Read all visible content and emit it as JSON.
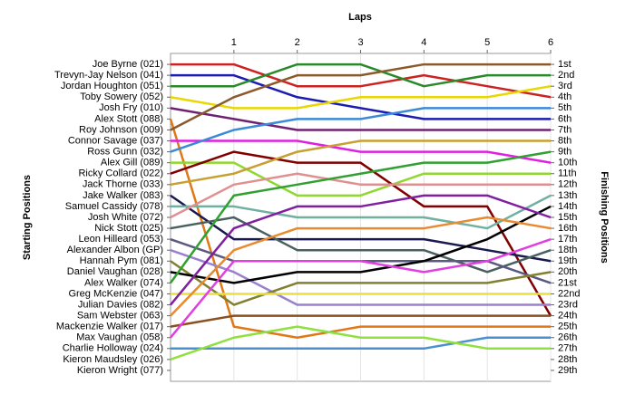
{
  "chart_data": {
    "type": "bump",
    "title": "Laps",
    "y_label": "Starting Positions",
    "y2_label": "Finishing Positions",
    "x": [
      0,
      1,
      2,
      3,
      4,
      5,
      6
    ],
    "xlim": [
      0,
      6
    ],
    "xticks": [
      1,
      2,
      3,
      4,
      5,
      6
    ],
    "ylim": [
      30,
      0
    ],
    "grid": true,
    "yticks": [
      {
        "value": 1,
        "label": "Joe Byrne (021)"
      },
      {
        "value": 2,
        "label": "Trevyn-Jay Nelson (041)"
      },
      {
        "value": 3,
        "label": "Jordan Houghton (051)"
      },
      {
        "value": 4,
        "label": "Toby Sowery (052)"
      },
      {
        "value": 5,
        "label": "Josh Fry (010)"
      },
      {
        "value": 6,
        "label": "Alex Stott (088)"
      },
      {
        "value": 7,
        "label": "Roy Johnson (009)"
      },
      {
        "value": 8,
        "label": "Connor Savage (037)"
      },
      {
        "value": 9,
        "label": "Ross Gunn (032)"
      },
      {
        "value": 10,
        "label": "Alex Gill (089)"
      },
      {
        "value": 11,
        "label": "Ricky Collard (022)"
      },
      {
        "value": 12,
        "label": "Jack Thorne (033)"
      },
      {
        "value": 13,
        "label": "Jake Walker (083)"
      },
      {
        "value": 14,
        "label": "Samuel Cassidy (078)"
      },
      {
        "value": 15,
        "label": "Josh White (072)"
      },
      {
        "value": 16,
        "label": "Nick Stott (025)"
      },
      {
        "value": 17,
        "label": "Leon Hilleard (053)"
      },
      {
        "value": 18,
        "label": "Alexander Albon (GP)"
      },
      {
        "value": 19,
        "label": "Hannah Pym (081)"
      },
      {
        "value": 20,
        "label": "Daniel Vaughan (028)"
      },
      {
        "value": 21,
        "label": "Alex Walker (074)"
      },
      {
        "value": 22,
        "label": "Greg McKenzie (047)"
      },
      {
        "value": 23,
        "label": "Julian Davies (082)"
      },
      {
        "value": 24,
        "label": "Sam Webster (063)"
      },
      {
        "value": 25,
        "label": "Mackenzie Walker (017)"
      },
      {
        "value": 26,
        "label": "Max Vaughan (058)"
      },
      {
        "value": 27,
        "label": "Charlie Holloway (024)"
      },
      {
        "value": 28,
        "label": "Kieron Maudsley (026)"
      },
      {
        "value": 29,
        "label": "Kieron Wright (077)"
      }
    ],
    "y2ticks": [
      {
        "value": 1,
        "label": "1st"
      },
      {
        "value": 2,
        "label": "2nd"
      },
      {
        "value": 3,
        "label": "3rd"
      },
      {
        "value": 4,
        "label": "4th"
      },
      {
        "value": 5,
        "label": "5th"
      },
      {
        "value": 6,
        "label": "6th"
      },
      {
        "value": 7,
        "label": "7th"
      },
      {
        "value": 8,
        "label": "8th"
      },
      {
        "value": 9,
        "label": "9th"
      },
      {
        "value": 10,
        "label": "10th"
      },
      {
        "value": 11,
        "label": "11th"
      },
      {
        "value": 12,
        "label": "12th"
      },
      {
        "value": 13,
        "label": "13th"
      },
      {
        "value": 14,
        "label": "14th"
      },
      {
        "value": 15,
        "label": "15th"
      },
      {
        "value": 16,
        "label": "16th"
      },
      {
        "value": 17,
        "label": "17th"
      },
      {
        "value": 18,
        "label": "18th"
      },
      {
        "value": 19,
        "label": "19th"
      },
      {
        "value": 20,
        "label": "20th"
      },
      {
        "value": 21,
        "label": "21st"
      },
      {
        "value": 22,
        "label": "22nd"
      },
      {
        "value": 23,
        "label": "23rd"
      },
      {
        "value": 24,
        "label": "24th"
      },
      {
        "value": 25,
        "label": "25th"
      },
      {
        "value": 26,
        "label": "26th"
      },
      {
        "value": 27,
        "label": "27th"
      },
      {
        "value": 28,
        "label": "28th"
      },
      {
        "value": 29,
        "label": "29th"
      }
    ],
    "series": [
      {
        "color": "#cc2222",
        "values": [
          1,
          1,
          3,
          3,
          2,
          3,
          4
        ]
      },
      {
        "color": "#1c1cb0",
        "values": [
          2,
          2,
          4,
          5,
          6,
          6,
          6
        ]
      },
      {
        "color": "#2a8a2a",
        "values": [
          3,
          3,
          1,
          1,
          3,
          2,
          2
        ]
      },
      {
        "color": "#e8d800",
        "values": [
          4,
          5,
          5,
          4,
          4,
          4,
          3
        ]
      },
      {
        "color": "#702070",
        "values": [
          5,
          6,
          7,
          7,
          7,
          7,
          7
        ]
      },
      {
        "color": "#e07818",
        "values": [
          6,
          25,
          26,
          25,
          25,
          25,
          25
        ]
      },
      {
        "color": "#8a5a2a",
        "values": [
          7,
          4,
          2,
          2,
          1,
          1,
          1
        ]
      },
      {
        "color": "#e020e0",
        "values": [
          8,
          8,
          8,
          9,
          9,
          9,
          10
        ]
      },
      {
        "color": "#3a8ad8",
        "values": [
          9,
          7,
          6,
          6,
          5,
          5,
          5
        ]
      },
      {
        "color": "#90d830",
        "values": [
          10,
          10,
          13,
          13,
          11,
          11,
          11
        ]
      },
      {
        "color": "#800000",
        "values": [
          11,
          9,
          10,
          10,
          14,
          14,
          24
        ]
      },
      {
        "color": "#c8a030",
        "values": [
          12,
          11,
          9,
          8,
          8,
          8,
          8
        ]
      },
      {
        "color": "#1a1a50",
        "values": [
          13,
          17,
          17,
          17,
          17,
          18,
          19
        ]
      },
      {
        "color": "#70b0a0",
        "values": [
          14,
          14,
          15,
          15,
          15,
          16,
          13
        ]
      },
      {
        "color": "#e09090",
        "values": [
          15,
          12,
          11,
          12,
          12,
          12,
          12
        ]
      },
      {
        "color": "#4a6060",
        "values": [
          16,
          15,
          18,
          18,
          18,
          20,
          18
        ]
      },
      {
        "color": "#5a5a80",
        "values": [
          17,
          19,
          19,
          19,
          19,
          19,
          21
        ]
      },
      {
        "color": "#9a80d0",
        "values": [
          18,
          20,
          23,
          23,
          23,
          23,
          23
        ]
      },
      {
        "color": "#808030",
        "values": [
          19,
          23,
          21,
          21,
          21,
          21,
          20
        ]
      },
      {
        "color": "#000000",
        "values": [
          20,
          21,
          20,
          20,
          19,
          17,
          14
        ]
      },
      {
        "color": "#30a030",
        "values": [
          21,
          13,
          12,
          11,
          10,
          10,
          9
        ]
      },
      {
        "color": "#e8e040",
        "values": [
          22,
          22,
          22,
          22,
          22,
          22,
          22
        ]
      },
      {
        "color": "#8020a0",
        "values": [
          23,
          16,
          14,
          14,
          13,
          13,
          15
        ]
      },
      {
        "color": "#e88a30",
        "values": [
          24,
          18,
          16,
          16,
          16,
          15,
          16
        ]
      },
      {
        "color": "#8a5020",
        "values": [
          25,
          24,
          24,
          24,
          24,
          24,
          24
        ]
      },
      {
        "color": "#e040e0",
        "values": [
          26,
          19,
          19,
          19,
          20,
          19,
          17
        ]
      },
      {
        "color": "#4a90d0",
        "values": [
          27,
          27,
          27,
          27,
          27,
          26,
          26
        ]
      },
      {
        "color": "#90e040",
        "values": [
          28,
          26,
          25,
          26,
          26,
          27,
          27
        ]
      },
      {
        "color": "#888888",
        "values": [
          29,
          null,
          null,
          null,
          null,
          null,
          null
        ]
      }
    ]
  }
}
